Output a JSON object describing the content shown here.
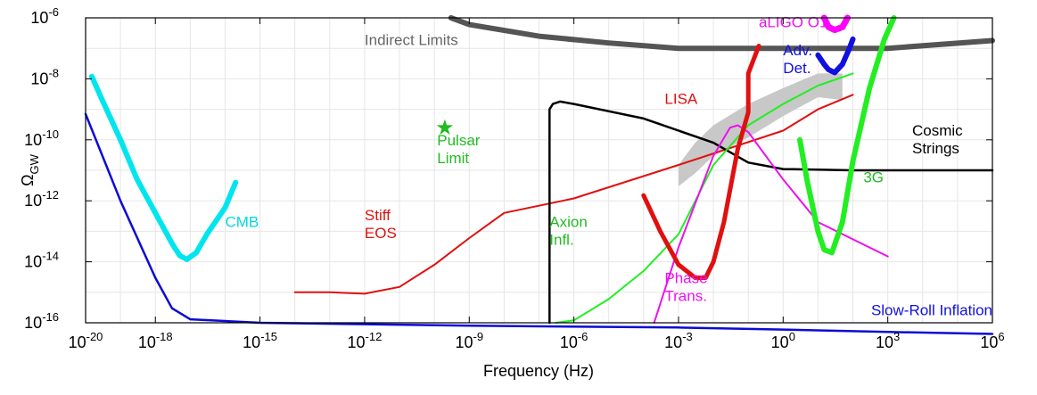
{
  "chart_data": {
    "type": "line",
    "title": "",
    "xlabel": "Frequency (Hz)",
    "ylabel": "Ω",
    "ylabel_sub": "GW",
    "x_scale": "log",
    "y_scale": "log",
    "xlim": [
      1e-20,
      1000000.0
    ],
    "ylim": [
      1e-16,
      1e-06
    ],
    "grid": true,
    "x_ticks": [
      {
        "value": 1e-20,
        "base": "10",
        "exp": "-20"
      },
      {
        "value": 1e-18,
        "base": "10",
        "exp": "-18"
      },
      {
        "value": 1e-15,
        "base": "10",
        "exp": "-15"
      },
      {
        "value": 1e-12,
        "base": "10",
        "exp": "-12"
      },
      {
        "value": 1e-09,
        "base": "10",
        "exp": "-9"
      },
      {
        "value": 1e-06,
        "base": "10",
        "exp": "-6"
      },
      {
        "value": 0.001,
        "base": "10",
        "exp": "-3"
      },
      {
        "value": 1,
        "base": "10",
        "exp": "0"
      },
      {
        "value": 1000.0,
        "base": "10",
        "exp": "3"
      },
      {
        "value": 1000000.0,
        "base": "10",
        "exp": "6"
      }
    ],
    "y_ticks": [
      {
        "value": 1e-06,
        "base": "10",
        "exp": "-6"
      },
      {
        "value": 1e-08,
        "base": "10",
        "exp": "-8"
      },
      {
        "value": 1e-10,
        "base": "10",
        "exp": "-10"
      },
      {
        "value": 1e-12,
        "base": "10",
        "exp": "-12"
      },
      {
        "value": 1e-14,
        "base": "10",
        "exp": "-14"
      },
      {
        "value": 1e-16,
        "base": "10",
        "exp": "-16"
      }
    ],
    "bands": [
      {
        "name": "LISA-band",
        "color": "#c8c8c8",
        "upper": [
          [
            0.001,
            1.5e-11
          ],
          [
            0.003,
            8e-11
          ],
          [
            0.01,
            3e-10
          ],
          [
            0.1,
            1.5e-09
          ],
          [
            1,
            5e-09
          ],
          [
            10,
            1.5e-08
          ],
          [
            50,
            1.5e-08
          ]
        ],
        "lower": [
          [
            0.001,
            3e-12
          ],
          [
            0.003,
            8e-12
          ],
          [
            0.01,
            3e-11
          ],
          [
            0.1,
            1.2e-10
          ],
          [
            1,
            6e-10
          ],
          [
            10,
            2.5e-09
          ],
          [
            50,
            2e-09
          ]
        ]
      }
    ],
    "series": [
      {
        "color": "#0b0bd6",
        "width": 2.5,
        "points": [
          [
            1e-20,
            7e-10
          ],
          [
            1e-19,
            1e-12
          ],
          [
            1e-18,
            3e-15
          ],
          [
            3e-18,
            3e-16
          ],
          [
            1e-17,
            1.3e-16
          ],
          [
            1e-15,
            1e-16
          ],
          [
            1e-09,
            8e-17
          ],
          [
            0.001,
            7e-17
          ],
          [
            1,
            6e-17
          ],
          [
            1000.0,
            5e-17
          ],
          [
            1000000.0,
            4.3e-17
          ]
        ]
      },
      {
        "color": "#00e5ee",
        "width": 6,
        "points": [
          [
            1.5e-20,
            1.2e-08
          ],
          [
            3e-20,
            2e-09
          ],
          [
            1e-19,
            1e-10
          ],
          [
            3e-19,
            5e-12
          ],
          [
            1e-18,
            4e-13
          ],
          [
            3e-18,
            4e-14
          ],
          [
            5e-18,
            1.6e-14
          ],
          [
            8e-18,
            1.2e-14
          ],
          [
            1.5e-17,
            2e-14
          ],
          [
            3e-17,
            8e-14
          ],
          [
            1e-16,
            6e-13
          ],
          [
            2e-16,
            4e-12
          ]
        ]
      },
      {
        "color": "#555555",
        "width": 6,
        "points": [
          [
            3e-10,
            1e-06
          ],
          [
            1e-09,
            6e-07
          ],
          [
            1e-07,
            2.5e-07
          ],
          [
            1e-05,
            1.5e-07
          ],
          [
            0.001,
            1e-07
          ],
          [
            1,
            1e-07
          ],
          [
            1000.0,
            1e-07
          ],
          [
            1000000.0,
            1.8e-07
          ]
        ]
      },
      {
        "color": "#e01010",
        "width": 2,
        "points": [
          [
            1e-14,
            1e-15
          ],
          [
            1e-13,
            1e-15
          ],
          [
            1e-12,
            9e-16
          ],
          [
            1e-11,
            1.5e-15
          ],
          [
            1e-10,
            8e-15
          ],
          [
            1e-09,
            6e-14
          ],
          [
            1e-08,
            4e-13
          ],
          [
            1e-06,
            1.2e-12
          ],
          [
            0.001,
            1.5e-11
          ],
          [
            1,
            2e-10
          ],
          [
            10,
            1e-09
          ],
          [
            100,
            3e-09
          ]
        ]
      },
      {
        "color": "#000000",
        "width": 2.5,
        "points": [
          [
            2e-07,
            1e-16
          ],
          [
            2e-07,
            1e-13
          ],
          [
            2e-07,
            1e-10
          ],
          [
            2e-07,
            1e-09
          ],
          [
            2.5e-07,
            1.5e-09
          ],
          [
            4e-07,
            1.8e-09
          ],
          [
            1e-06,
            1.5e-09
          ],
          [
            0.0001,
            5e-10
          ],
          [
            0.01,
            8e-11
          ],
          [
            0.1,
            1.8e-11
          ],
          [
            1,
            1.1e-11
          ],
          [
            100,
            1e-11
          ],
          [
            1000000.0,
            1e-11
          ]
        ]
      },
      {
        "color": "#22ee22",
        "width": 2,
        "points": [
          [
            3e-07,
            1e-16
          ],
          [
            1e-06,
            1.2e-16
          ],
          [
            1e-05,
            6e-16
          ],
          [
            0.0001,
            5e-15
          ],
          [
            0.001,
            8e-14
          ],
          [
            0.01,
            1.5e-11
          ],
          [
            0.1,
            3e-10
          ],
          [
            1,
            1.5e-09
          ],
          [
            10,
            6e-09
          ],
          [
            100,
            1.5e-08
          ]
        ]
      },
      {
        "color": "#ee10ee",
        "width": 2,
        "points": [
          [
            0.0002,
            1e-16
          ],
          [
            0.001,
            3e-14
          ],
          [
            0.01,
            3e-11
          ],
          [
            0.03,
            2.5e-10
          ],
          [
            0.05,
            3e-10
          ],
          [
            0.1,
            1.8e-10
          ],
          [
            1,
            5e-12
          ],
          [
            10,
            2e-13
          ],
          [
            1000.0,
            1.5e-14
          ]
        ]
      },
      {
        "color": "#e01010",
        "width": 5,
        "points": [
          [
            0.0001,
            1.5e-12
          ],
          [
            0.0003,
            1e-13
          ],
          [
            0.001,
            8e-15
          ],
          [
            0.003,
            3e-15
          ],
          [
            0.006,
            3e-15
          ],
          [
            0.01,
            1e-14
          ],
          [
            0.02,
            2e-13
          ],
          [
            0.05,
            5e-11
          ],
          [
            0.1,
            8e-10
          ],
          [
            0.1,
            1.5e-08
          ],
          [
            0.2,
            1.2e-07
          ]
        ]
      },
      {
        "color": "#22ee22",
        "width": 6,
        "points": [
          [
            3,
            1e-10
          ],
          [
            5,
            4e-12
          ],
          [
            10,
            1e-13
          ],
          [
            15,
            2.5e-14
          ],
          [
            25,
            2e-14
          ],
          [
            50,
            2e-13
          ],
          [
            100,
            2e-11
          ],
          [
            300,
            5e-09
          ],
          [
            800,
            2e-07
          ],
          [
            1500,
            1e-06
          ]
        ]
      },
      {
        "color": "#1010e0",
        "width": 6,
        "points": [
          [
            10,
            6e-08
          ],
          [
            15,
            3e-08
          ],
          [
            20,
            2e-08
          ],
          [
            30,
            1.6e-08
          ],
          [
            50,
            3e-08
          ],
          [
            80,
            1e-07
          ],
          [
            100,
            2e-07
          ]
        ]
      },
      {
        "color": "#ff00ff",
        "width": 7,
        "points": [
          [
            15,
            1e-06
          ],
          [
            20,
            5e-07
          ],
          [
            30,
            4e-07
          ],
          [
            50,
            5e-07
          ],
          [
            70,
            1e-06
          ]
        ]
      }
    ],
    "annotations": [
      {
        "id": "cmb-label",
        "lines": [
          "CMB"
        ],
        "color": "#00d8e0",
        "x": 1e-16,
        "y": 1.4e-13,
        "anchor": "start"
      },
      {
        "id": "indirect-label",
        "lines": [
          "Indirect Limits"
        ],
        "color": "#666666",
        "x": 1e-12,
        "y": 1.3e-07,
        "anchor": "start"
      },
      {
        "id": "pulsar-label",
        "lines": [
          "Pulsar",
          "Limit"
        ],
        "color": "#22bb22",
        "x": 1.2e-10,
        "y": 6.5e-11,
        "anchor": "start"
      },
      {
        "id": "stiff-eos-label",
        "lines": [
          "Stiff",
          "EOS"
        ],
        "color": "#e01010",
        "x": 1e-12,
        "y": 2.3e-13,
        "anchor": "start"
      },
      {
        "id": "axion-label",
        "lines": [
          "Axion",
          "Infl."
        ],
        "color": "#22bb22",
        "x": 2e-07,
        "y": 1.4e-13,
        "anchor": "start"
      },
      {
        "id": "lisa-label",
        "lines": [
          "LISA"
        ],
        "color": "#e01010",
        "x": 0.0004,
        "y": 1.5e-09,
        "anchor": "start"
      },
      {
        "id": "phase-trans-label",
        "lines": [
          "Phase",
          "Trans."
        ],
        "color": "#ee10ee",
        "x": 0.0004,
        "y": 2e-15,
        "anchor": "start"
      },
      {
        "id": "aligo-label",
        "lines": [
          "aLIGO O1"
        ],
        "color": "#ee10ee",
        "x": 0.2,
        "y": 5e-07,
        "anchor": "start"
      },
      {
        "id": "adv-det-label",
        "lines": [
          "Adv.",
          "Det."
        ],
        "color": "#1010e0",
        "x": 1,
        "y": 6e-08,
        "anchor": "start"
      },
      {
        "id": "cosmic-strings-label",
        "lines": [
          "Cosmic",
          "Strings"
        ],
        "color": "#000000",
        "x": 5000.0,
        "y": 1.4e-10,
        "anchor": "start"
      },
      {
        "id": "3g-label",
        "lines": [
          "3G"
        ],
        "color": "#22bb22",
        "x": 200,
        "y": 4e-12,
        "anchor": "start"
      },
      {
        "id": "slow-roll-label",
        "lines": [
          "Slow-Roll Inflation"
        ],
        "color": "#1010e0",
        "x": 1000000.0,
        "y": 1.8e-16,
        "anchor": "end"
      }
    ],
    "markers": [
      {
        "id": "pulsar-star",
        "symbol": "★",
        "color": "#22bb22",
        "x": 2e-10,
        "y": 2.5e-10
      }
    ]
  }
}
